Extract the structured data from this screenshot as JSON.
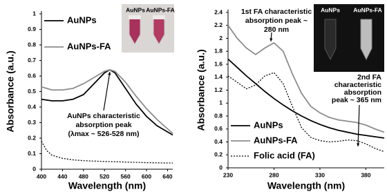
{
  "chart_data": [
    {
      "type": "line",
      "xlabel": "Wavelength (nm)",
      "ylabel": "Absorbance (a.u.)",
      "x": [
        400,
        410,
        420,
        440,
        460,
        480,
        500,
        520,
        530,
        540,
        560,
        580,
        600,
        620,
        640,
        650
      ],
      "xlim": [
        400,
        650
      ],
      "xticks": [
        400,
        440,
        480,
        520,
        560,
        600,
        640
      ],
      "ylim": [
        0,
        1
      ],
      "yticks": [
        0,
        0.1,
        0.2,
        0.3,
        0.4,
        0.5,
        0.6,
        0.7,
        0.8,
        0.9,
        1
      ],
      "legend": "upper left",
      "series": [
        {
          "name": "AuNPs",
          "color": "#000000",
          "line_style": "solid",
          "values": [
            0.45,
            0.445,
            0.44,
            0.44,
            0.45,
            0.48,
            0.55,
            0.62,
            0.64,
            0.62,
            0.52,
            0.42,
            0.34,
            0.28,
            0.24,
            0.22
          ]
        },
        {
          "name": "AuNPs-FA",
          "color": "#8c8c8c",
          "line_style": "solid",
          "values": [
            0.53,
            0.52,
            0.51,
            0.51,
            0.52,
            0.55,
            0.59,
            0.63,
            0.64,
            0.63,
            0.56,
            0.47,
            0.39,
            0.32,
            0.26,
            0.23
          ]
        },
        {
          "color": "#000000",
          "line_style": "dotted",
          "values": [
            0.18,
            0.12,
            0.09,
            0.07,
            0.06,
            0.055,
            0.052,
            0.05,
            0.049,
            0.048,
            0.046,
            0.044,
            0.042,
            0.041,
            0.04,
            0.04
          ]
        }
      ],
      "annotations": [
        {
          "lines": [
            "AuNPs characteristic",
            "absorption peak",
            "(λmax ~ 526-528 nm)"
          ]
        }
      ],
      "inset_labels": [
        "AuNPs",
        "AuNPs-FA"
      ]
    },
    {
      "type": "line",
      "xlabel": "Wavelength (nm)",
      "ylabel": "Absorbance (a.u.)",
      "x": [
        230,
        240,
        250,
        260,
        270,
        280,
        290,
        300,
        310,
        320,
        330,
        340,
        350,
        360,
        370,
        380,
        390,
        400
      ],
      "xlim": [
        230,
        400
      ],
      "xticks": [
        230,
        280,
        330,
        380
      ],
      "ylim": [
        0,
        2.4
      ],
      "yticks": [
        0,
        0.2,
        0.4,
        0.6,
        0.8,
        1,
        1.2,
        1.4,
        1.6,
        1.8,
        2,
        2.2,
        2.4
      ],
      "legend": "lower left",
      "series": [
        {
          "name": "AuNPs",
          "color": "#000000",
          "line_style": "solid",
          "values": [
            1.68,
            1.55,
            1.42,
            1.3,
            1.18,
            1.07,
            0.97,
            0.88,
            0.8,
            0.73,
            0.67,
            0.62,
            0.58,
            0.55,
            0.52,
            0.5,
            0.48,
            0.46
          ]
        },
        {
          "name": "AuNPs-FA",
          "color": "#8c8c8c",
          "line_style": "solid",
          "values": [
            2.2,
            2.0,
            1.85,
            1.75,
            1.85,
            1.93,
            1.8,
            1.45,
            1.15,
            0.95,
            0.85,
            0.78,
            0.74,
            0.72,
            0.7,
            0.66,
            0.6,
            0.55
          ]
        },
        {
          "name": "Folic acid (FA)",
          "color": "#000000",
          "line_style": "dotted",
          "values": [
            1.42,
            1.32,
            1.22,
            1.28,
            1.42,
            1.47,
            1.3,
            0.95,
            0.62,
            0.47,
            0.42,
            0.4,
            0.41,
            0.43,
            0.42,
            0.37,
            0.3,
            0.25
          ]
        }
      ],
      "annotations": [
        {
          "lines": [
            "1st FA characteristic",
            "absorption peak ~",
            "280 nm"
          ]
        },
        {
          "lines": [
            "2nd FA",
            "characteristic",
            "absorption",
            "peak ~ 365 nm"
          ]
        }
      ],
      "inset_labels": [
        "AuNPs",
        "AuNPs-FA"
      ]
    }
  ]
}
